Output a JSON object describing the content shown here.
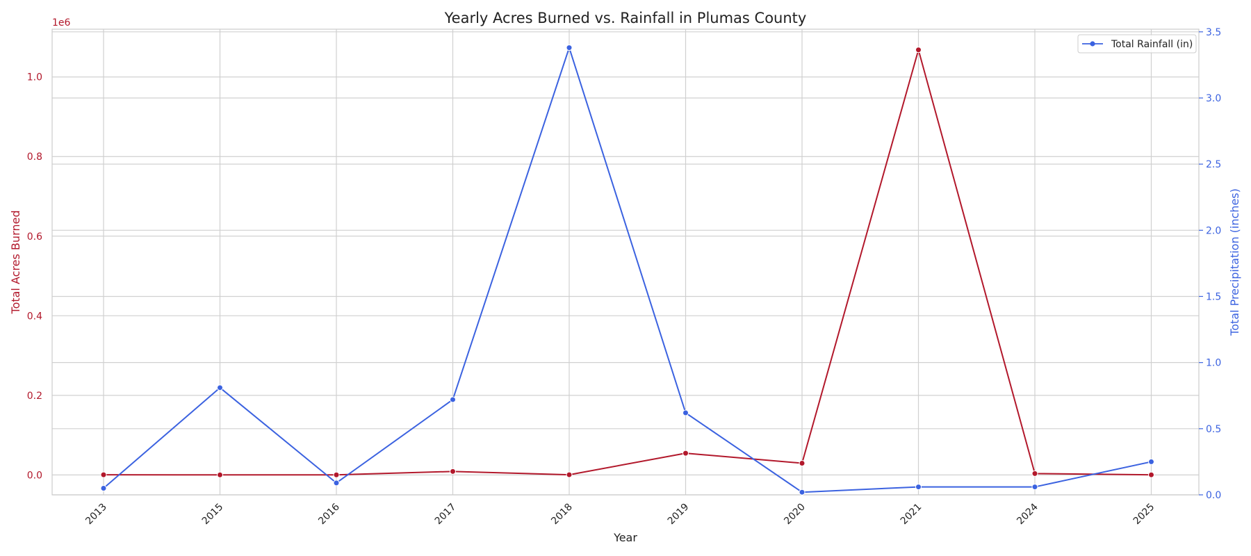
{
  "chart_data": {
    "type": "line",
    "title": "Yearly Acres Burned vs. Rainfall in Plumas County",
    "xlabel": "Year",
    "categories": [
      "2013",
      "2015",
      "2016",
      "2017",
      "2018",
      "2019",
      "2020",
      "2021",
      "2024",
      "2025"
    ],
    "left_axis": {
      "label": "Total Acres Burned",
      "offset_text": "1e6",
      "ylim": [
        -0.05,
        1.12
      ],
      "ticks": [
        "0.0",
        "0.2",
        "0.4",
        "0.6",
        "0.8",
        "1.0"
      ],
      "color": "#b2182b"
    },
    "right_axis": {
      "label": "Total Precipitation (inches)",
      "ylim": [
        0.0,
        3.52
      ],
      "ticks": [
        "0.0",
        "0.5",
        "1.0",
        "1.5",
        "2.0",
        "2.5",
        "3.0",
        "3.5"
      ],
      "color": "#3b62e0"
    },
    "series": [
      {
        "axis": "left",
        "color": "#b2182b",
        "values": [
          0.0004,
          0.0001,
          0.0002,
          0.0088,
          0.0005,
          0.0545,
          0.0295,
          1.068,
          0.0035,
          0.0003
        ]
      },
      {
        "name": "Total Rainfall (in)",
        "axis": "right",
        "color": "#3b62e0",
        "values": [
          0.05,
          0.81,
          0.09,
          0.72,
          3.38,
          0.62,
          0.02,
          0.06,
          0.06,
          0.25
        ]
      }
    ],
    "grid": true,
    "legend": {
      "position": "top-right",
      "entries": [
        "Total Rainfall (in)"
      ]
    }
  }
}
